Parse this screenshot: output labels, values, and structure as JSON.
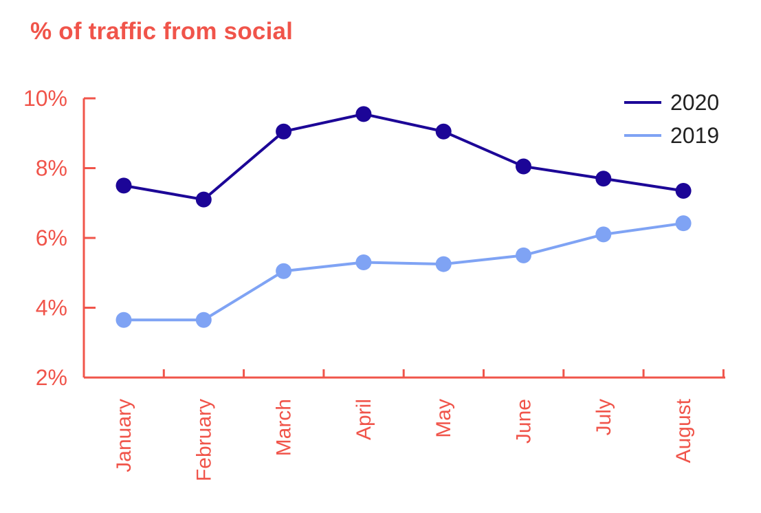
{
  "title": "% of traffic from social",
  "colors": {
    "accent": "#f0544a",
    "series_2020": "#1c0597",
    "series_2019": "#7fa3f4",
    "legend_text": "#222222"
  },
  "chart_data": {
    "type": "line",
    "title": "% of traffic from social",
    "xlabel": "",
    "ylabel": "",
    "categories": [
      "January",
      "February",
      "March",
      "April",
      "May",
      "June",
      "July",
      "August"
    ],
    "ylim": [
      2,
      10
    ],
    "yticks": [
      10,
      8,
      6,
      4,
      2
    ],
    "ytick_labels": [
      "10%",
      "8%",
      "6%",
      "4%",
      "2%"
    ],
    "grid": false,
    "legend": "top-right",
    "series": [
      {
        "name": "2020",
        "color": "#1c0597",
        "values": [
          7.5,
          7.1,
          9.05,
          9.55,
          9.05,
          8.05,
          7.7,
          7.35
        ]
      },
      {
        "name": "2019",
        "color": "#7fa3f4",
        "values": [
          3.65,
          3.65,
          5.05,
          5.3,
          5.25,
          5.5,
          6.1,
          6.42
        ]
      }
    ]
  }
}
